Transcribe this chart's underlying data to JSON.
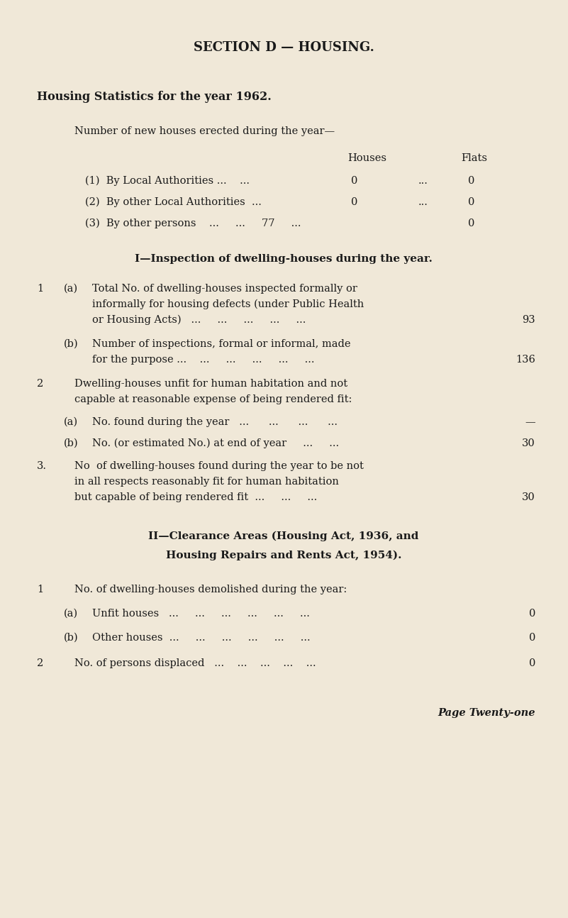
{
  "bg_color": "#f0e8d8",
  "text_color": "#1a1a1a",
  "title": "SECTION D — HOUSING.",
  "subtitle": "Housing Statistics for the year 1962.",
  "page_note": "Page Twenty-one",
  "section1_header": "Number of new houses erected during the year—",
  "col_houses": "Houses",
  "col_flats": "Flats",
  "section_I_header": "I—Inspection of dwelling-houses during the year.",
  "section_II_header_line1": "II—Clearance Areas (Housing Act, 1936, and",
  "section_II_header_line2": "Housing Repairs and Rents Act, 1954)."
}
